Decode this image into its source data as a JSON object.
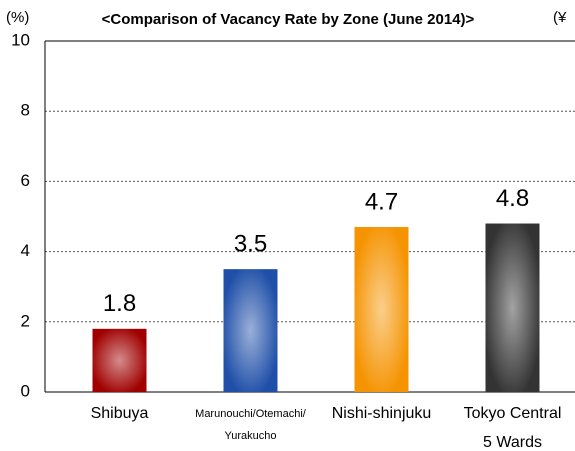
{
  "chart_data": {
    "type": "bar",
    "title": "<Comparison of Vacancy Rate by Zone (June 2014)>",
    "y_unit": "(%)",
    "annotation": "(¥",
    "categories": [
      [
        "Shibuya"
      ],
      [
        "Marunouchi/Otemachi/",
        "Yurakucho"
      ],
      [
        "Nishi-shinjuku"
      ],
      [
        "Tokyo Central",
        "5 Wards"
      ]
    ],
    "values": [
      1.8,
      3.5,
      4.7,
      4.8
    ],
    "colors": [
      "#a00000",
      "#1f4fa8",
      "#f59300",
      "#333333"
    ],
    "ylim": [
      0,
      10
    ],
    "yticks": [
      0,
      2,
      4,
      6,
      8,
      10
    ],
    "grid": true
  }
}
